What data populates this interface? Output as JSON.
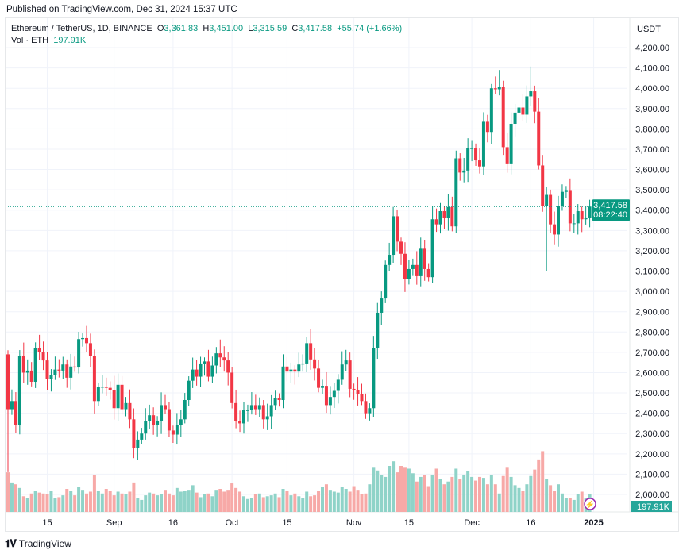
{
  "published": "Published on TradingView.com, Dec 31, 2024 15:37 UTC",
  "legend": {
    "symbol": "Ethereum / TetherUS, 1D, BINANCE",
    "o_label": "O",
    "o": "3,361.83",
    "h_label": "H",
    "h": "3,451.00",
    "l_label": "L",
    "l": "3,315.59",
    "c_label": "C",
    "c": "3,417.58",
    "change": "+55.74 (+1.66%)",
    "vol_label": "Vol · ETH",
    "vol": "197.91K"
  },
  "currency": "USDT",
  "last_price": "3,417.58",
  "countdown": "08:22:40",
  "last_volume": "197.91K",
  "footer": "TradingView",
  "colors": {
    "up": "#089981",
    "down": "#f23645",
    "vol_up": "#8fd3c8",
    "vol_down": "#f7a9a7"
  },
  "chart_data": {
    "type": "candlestick",
    "start_date": "2024-08-05",
    "first_open": 2690,
    "closes": [
      2420,
      2460,
      2340,
      2680,
      2600,
      2610,
      2555,
      2720,
      2700,
      2660,
      2570,
      2590,
      2615,
      2610,
      2640,
      2575,
      2630,
      2625,
      2765,
      2770,
      2745,
      2680,
      2460,
      2530,
      2530,
      2525,
      2515,
      2425,
      2540,
      2420,
      2450,
      2370,
      2230,
      2270,
      2300,
      2360,
      2390,
      2340,
      2360,
      2440,
      2420,
      2315,
      2295,
      2340,
      2370,
      2465,
      2560,
      2615,
      2580,
      2645,
      2655,
      2580,
      2635,
      2695,
      2675,
      2660,
      2600,
      2450,
      2360,
      2350,
      2415,
      2415,
      2440,
      2420,
      2440,
      2370,
      2385,
      2440,
      2475,
      2465,
      2630,
      2605,
      2615,
      2605,
      2640,
      2645,
      2745,
      2665,
      2620,
      2525,
      2535,
      2440,
      2480,
      2510,
      2565,
      2640,
      2660,
      2520,
      2515,
      2495,
      2460,
      2400,
      2425,
      2720,
      2895,
      2965,
      3130,
      3180,
      3370,
      3245,
      3185,
      3060,
      3110,
      3130,
      3075,
      3210,
      3110,
      3070,
      3355,
      3330,
      3395,
      3360,
      3415,
      3320,
      3655,
      3585,
      3595,
      3705,
      3705,
      3645,
      3615,
      3835,
      3785,
      4000,
      3995,
      4005,
      3710,
      3630,
      3825,
      3880,
      3905,
      3870,
      3960,
      3985,
      3885,
      3620,
      3420,
      3475,
      3330,
      3280,
      3420,
      3490,
      3495,
      3335,
      3335,
      3395,
      3355,
      3360,
      3417.58
    ],
    "wick_extremes": [
      {
        "date": "2024-08-05",
        "low": 2110
      },
      {
        "date": "2024-12-08",
        "high": 4090
      },
      {
        "date": "2024-12-16",
        "high": 4107
      },
      {
        "date": "2024-12-20",
        "low": 3100
      },
      {
        "date": "2024-12-31",
        "high": 3451,
        "low": 3315.59
      }
    ],
    "volumes_k": [
      430,
      320,
      300,
      260,
      170,
      150,
      200,
      230,
      210,
      200,
      190,
      230,
      150,
      160,
      180,
      250,
      230,
      180,
      270,
      240,
      200,
      220,
      400,
      230,
      200,
      250,
      230,
      180,
      220,
      200,
      190,
      220,
      320,
      150,
      130,
      180,
      210,
      200,
      180,
      190,
      240,
      200,
      180,
      260,
      220,
      230,
      240,
      290,
      210,
      160,
      190,
      200,
      170,
      240,
      250,
      220,
      240,
      310,
      260,
      220,
      170,
      140,
      150,
      190,
      200,
      160,
      170,
      180,
      200,
      160,
      250,
      230,
      180,
      200,
      170,
      150,
      220,
      170,
      180,
      230,
      270,
      300,
      240,
      220,
      210,
      270,
      250,
      220,
      280,
      240,
      190,
      200,
      300,
      480,
      450,
      400,
      380,
      500,
      550,
      430,
      500,
      480,
      470,
      420,
      330,
      380,
      400,
      280,
      400,
      470,
      360,
      300,
      330,
      380,
      470,
      360,
      400,
      440,
      380,
      340,
      380,
      370,
      300,
      400,
      300,
      200,
      390,
      480,
      380,
      290,
      260,
      230,
      300,
      390,
      460,
      570,
      660,
      360,
      290,
      230,
      300,
      200,
      150,
      150,
      130,
      190,
      220,
      150,
      197.91
    ],
    "price_ticks": [
      "4,200.00",
      "4,100.00",
      "4,000.00",
      "3,900.00",
      "3,800.00",
      "3,700.00",
      "3,600.00",
      "3,500.00",
      "3,400.00",
      "3,300.00",
      "3,200.00",
      "3,100.00",
      "3,000.00",
      "2,900.00",
      "2,800.00",
      "2,700.00",
      "2,600.00",
      "2,500.00",
      "2,400.00",
      "2,300.00",
      "2,200.00",
      "2,100.00",
      "2,000.00"
    ],
    "price_tick_values": [
      4200,
      4100,
      4000,
      3900,
      3800,
      3700,
      3600,
      3500,
      3400,
      3300,
      3200,
      3100,
      3000,
      2900,
      2800,
      2700,
      2600,
      2500,
      2400,
      2300,
      2200,
      2100,
      2000
    ],
    "time_ticks": [
      {
        "label": "15",
        "date": "2024-08-15"
      },
      {
        "label": "Sep",
        "date": "2024-09-01"
      },
      {
        "label": "16",
        "date": "2024-09-16"
      },
      {
        "label": "Oct",
        "date": "2024-10-01"
      },
      {
        "label": "15",
        "date": "2024-10-15"
      },
      {
        "label": "Nov",
        "date": "2024-11-01"
      },
      {
        "label": "15",
        "date": "2024-11-15"
      },
      {
        "label": "Dec",
        "date": "2024-12-01"
      },
      {
        "label": "16",
        "date": "2024-12-16"
      },
      {
        "label": "2025",
        "date": "2025-01-01",
        "bold": true
      }
    ],
    "ylim": [
      2000,
      4200
    ]
  }
}
